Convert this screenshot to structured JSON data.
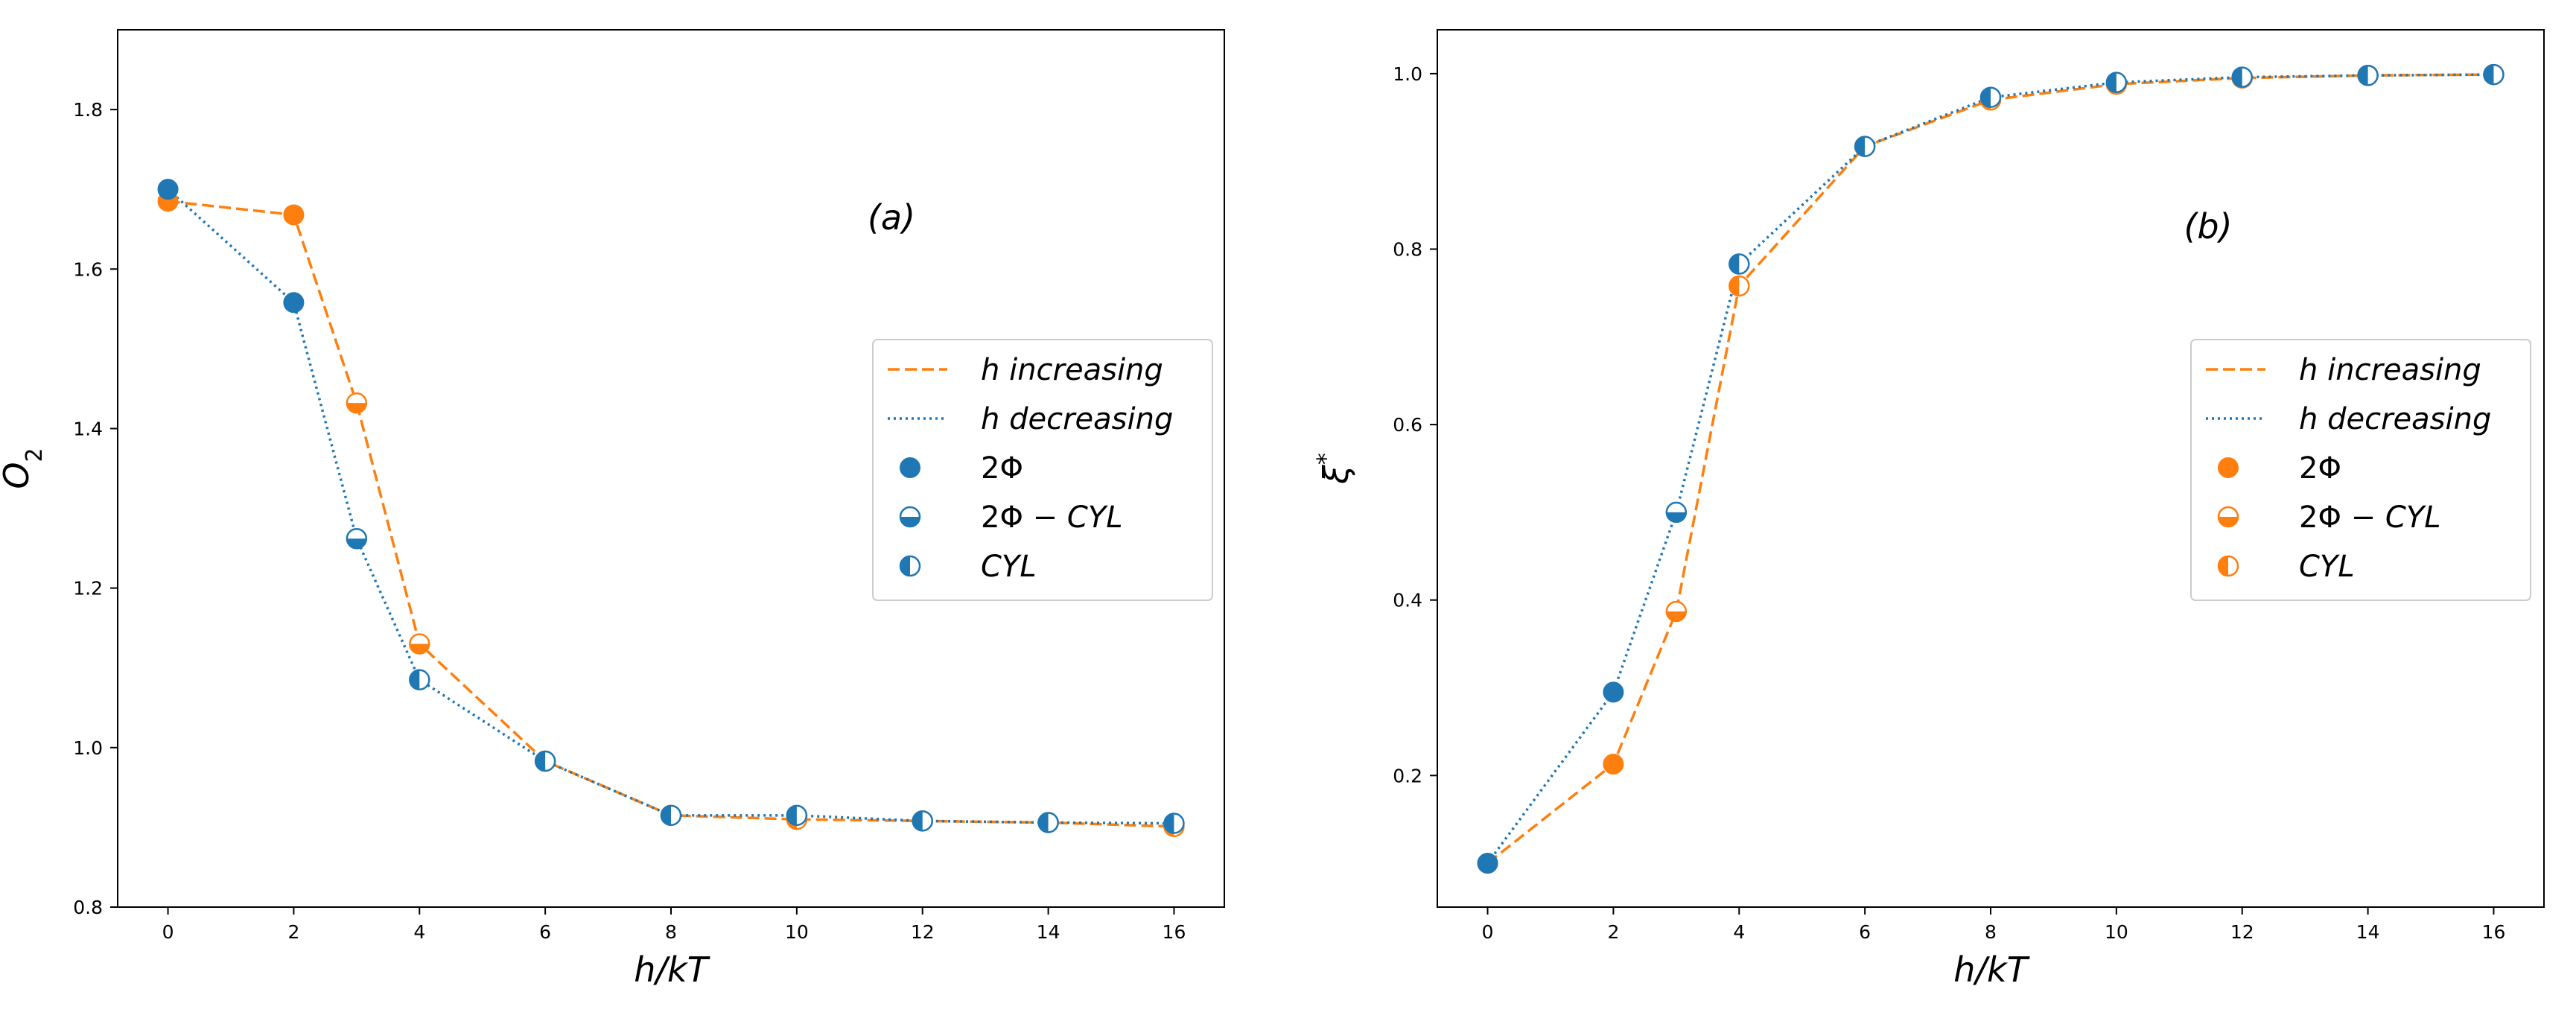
{
  "colors": {
    "increasing": "#ff7f0e",
    "decreasing": "#1f77b4",
    "frame": "#000000"
  },
  "chart_data": [
    {
      "type": "line",
      "panel_label": "(a)",
      "xlabel": "h/kT",
      "ylabel": "O",
      "ylabel_sub": "2",
      "xlim": [
        -0.8,
        16.8
      ],
      "ylim": [
        0.8,
        1.9
      ],
      "x_ticks": [
        0,
        2,
        4,
        6,
        8,
        10,
        12,
        14,
        16
      ],
      "x_tick_labels": [
        "0",
        "2",
        "4",
        "6",
        "8",
        "10",
        "12",
        "14",
        "16"
      ],
      "y_ticks": [
        0.8,
        1.0,
        1.2,
        1.4,
        1.6,
        1.8
      ],
      "y_tick_labels": [
        "0.8",
        "1.0",
        "1.2",
        "1.4",
        "1.6",
        "1.8"
      ],
      "legend": {
        "placement": "center-right",
        "marker_color": "decreasing",
        "entries": [
          {
            "kind": "line",
            "style": "dashed",
            "color": "increasing",
            "prefix": "h",
            "label": "increasing"
          },
          {
            "kind": "line",
            "style": "dotted",
            "color": "decreasing",
            "prefix": "h",
            "label": "decreasing"
          },
          {
            "kind": "marker",
            "marker": "full",
            "label": "2Φ"
          },
          {
            "kind": "marker",
            "marker": "bottom",
            "label": "2Φ − ",
            "label_it": "CYL"
          },
          {
            "kind": "marker",
            "marker": "left",
            "label": "",
            "label_it": "CYL"
          }
        ]
      },
      "series": [
        {
          "name": "h increasing",
          "color": "increasing",
          "style": "dashed",
          "x": [
            0,
            2,
            3,
            4,
            6,
            8,
            10,
            12,
            14,
            16
          ],
          "y": [
            1.685,
            1.668,
            1.432,
            1.13,
            0.983,
            0.915,
            0.91,
            0.908,
            0.906,
            0.901
          ],
          "markers": [
            "full",
            "full",
            "bottom",
            "bottom",
            "left",
            "left",
            "left",
            "left",
            "left",
            "left"
          ]
        },
        {
          "name": "h decreasing",
          "color": "decreasing",
          "style": "dotted",
          "x": [
            0,
            2,
            3,
            4,
            6,
            8,
            10,
            12,
            14,
            16
          ],
          "y": [
            1.7,
            1.558,
            1.262,
            1.085,
            0.983,
            0.915,
            0.915,
            0.908,
            0.906,
            0.905
          ],
          "markers": [
            "full",
            "full",
            "bottom",
            "left",
            "left",
            "left",
            "left",
            "left",
            "left",
            "left"
          ]
        }
      ]
    },
    {
      "type": "line",
      "panel_label": "(b)",
      "xlabel": "h/kT",
      "ylabel": "ξ",
      "ylabel_sup": "*",
      "xlim": [
        -0.8,
        16.8
      ],
      "ylim": [
        0.05,
        1.05
      ],
      "x_ticks": [
        0,
        2,
        4,
        6,
        8,
        10,
        12,
        14,
        16
      ],
      "x_tick_labels": [
        "0",
        "2",
        "4",
        "6",
        "8",
        "10",
        "12",
        "14",
        "16"
      ],
      "y_ticks": [
        0.2,
        0.4,
        0.6,
        0.8,
        1.0
      ],
      "y_tick_labels": [
        "0.2",
        "0.4",
        "0.6",
        "0.8",
        "1.0"
      ],
      "legend": {
        "placement": "center-right",
        "marker_color": "increasing",
        "entries": [
          {
            "kind": "line",
            "style": "dashed",
            "color": "increasing",
            "prefix": "h",
            "label": "increasing"
          },
          {
            "kind": "line",
            "style": "dotted",
            "color": "decreasing",
            "prefix": "h",
            "label": "decreasing"
          },
          {
            "kind": "marker",
            "marker": "full",
            "label": "2Φ"
          },
          {
            "kind": "marker",
            "marker": "bottom",
            "label": "2Φ − ",
            "label_it": "CYL"
          },
          {
            "kind": "marker",
            "marker": "left",
            "label": "",
            "label_it": "CYL"
          }
        ]
      },
      "series": [
        {
          "name": "h increasing",
          "color": "increasing",
          "style": "dashed",
          "x": [
            0,
            2,
            3,
            4,
            6,
            8,
            10,
            12,
            14,
            16
          ],
          "y": [
            0.1,
            0.213,
            0.387,
            0.758,
            0.917,
            0.97,
            0.988,
            0.995,
            0.998,
            0.999
          ],
          "markers": [
            "full",
            "full",
            "bottom",
            "left",
            "left",
            "left",
            "left",
            "left",
            "left",
            "left"
          ]
        },
        {
          "name": "h decreasing",
          "color": "decreasing",
          "style": "dotted",
          "x": [
            0,
            2,
            3,
            4,
            6,
            8,
            10,
            12,
            14,
            16
          ],
          "y": [
            0.1,
            0.295,
            0.5,
            0.783,
            0.917,
            0.973,
            0.99,
            0.996,
            0.998,
            0.999
          ],
          "markers": [
            "full",
            "full",
            "bottom",
            "left",
            "left",
            "left",
            "left",
            "left",
            "left",
            "left"
          ]
        }
      ]
    }
  ]
}
